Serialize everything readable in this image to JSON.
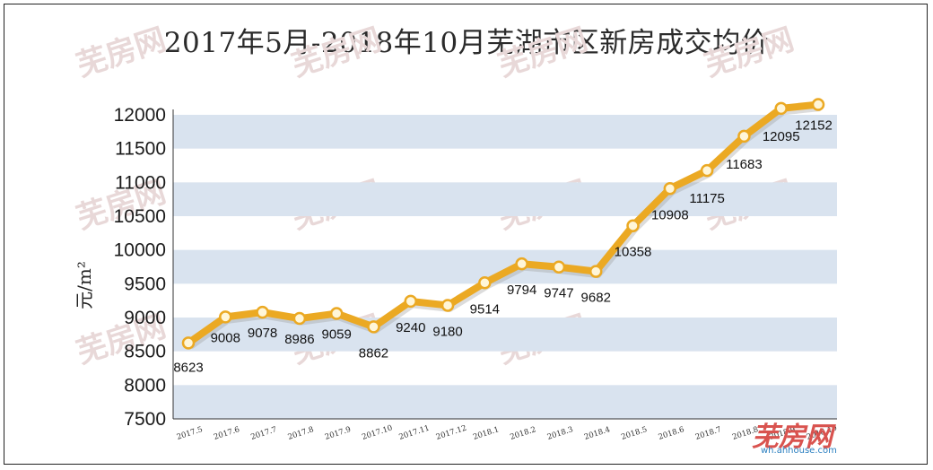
{
  "title": "2017年5月-2018年10月芜湖市区新房成交均价",
  "watermark": "芜房网",
  "logo": {
    "name": "芜房网",
    "url": "wh.ahhouse.com"
  },
  "colors": {
    "line": "#eba923",
    "band": "#d9e3ef",
    "marker_fill": "#fff6d8"
  },
  "chart_data": {
    "type": "line",
    "title": "2017年5月-2018年10月芜湖市区新房成交均价",
    "xlabel": "",
    "ylabel": "元/m²",
    "ylim": [
      7500,
      12000
    ],
    "yticks": [
      7500,
      8000,
      8500,
      9000,
      9500,
      10000,
      10500,
      11000,
      11500,
      12000
    ],
    "grid": "alternating horizontal bands",
    "categories": [
      "2017.5",
      "2017.6",
      "2017.7",
      "2017.8",
      "2017.9",
      "2017.10",
      "2017.11",
      "2017.12",
      "2018.1",
      "2018.2",
      "2018.3",
      "2018.4",
      "2018.5",
      "2018.6",
      "2018.7",
      "2018.8",
      "2018.9",
      "2018.10"
    ],
    "values": [
      8623,
      9008,
      9078,
      8986,
      9059,
      8862,
      9240,
      9180,
      9514,
      9794,
      9747,
      9682,
      10358,
      10908,
      11175,
      11683,
      12095,
      12152
    ],
    "labels": [
      "8623",
      "9008",
      "9078",
      "8986",
      "9059",
      "8862",
      "9240",
      "9180",
      "9514",
      "9794",
      "9747",
      "9682",
      "10358",
      "10908",
      "11175",
      "11683",
      "12095",
      "12152"
    ]
  }
}
